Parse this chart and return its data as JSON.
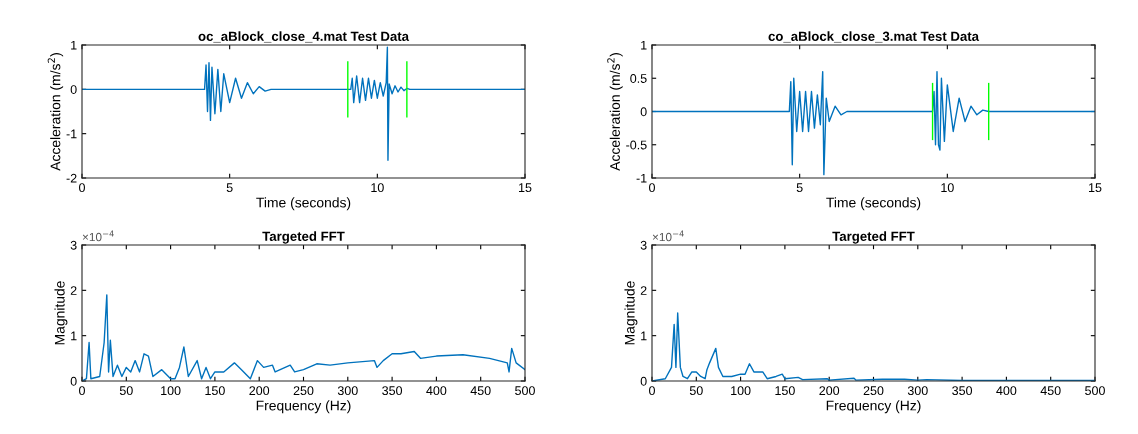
{
  "chart_data": [
    {
      "type": "line",
      "title": "oc_aBlock_close_4.mat Test Data",
      "xlabel": "Time (seconds)",
      "ylabel": "Acceleration (m/s$^{2}$)",
      "xlim": [
        0,
        15
      ],
      "xticks": [
        0,
        5,
        10,
        15
      ],
      "ylim": [
        -2,
        1
      ],
      "yticks": [
        -2,
        -1,
        0,
        1
      ],
      "series": [
        {
          "color": "#0072bd",
          "x": [
            0,
            4.15,
            4.2,
            4.25,
            4.3,
            4.35,
            4.4,
            4.5,
            4.6,
            4.7,
            4.8,
            5.0,
            5.2,
            5.4,
            5.6,
            5.8,
            6.0,
            6.2,
            6.4,
            9.1,
            9.15,
            9.2,
            9.3,
            9.4,
            9.5,
            9.6,
            9.7,
            9.8,
            9.9,
            10.0,
            10.1,
            10.2,
            10.3,
            10.34,
            10.36,
            10.4,
            10.5,
            10.6,
            10.7,
            10.8,
            10.9,
            11.0,
            11.1,
            15
          ],
          "values": [
            0,
            0,
            0.55,
            -0.5,
            0.6,
            -0.7,
            0.5,
            -0.55,
            0.45,
            -0.5,
            0.35,
            -0.3,
            0.25,
            -0.2,
            0.15,
            -0.1,
            0.06,
            -0.04,
            0,
            0,
            0.25,
            -0.3,
            0.3,
            -0.3,
            0.25,
            -0.25,
            0.25,
            -0.2,
            0.2,
            -0.2,
            0.15,
            -0.15,
            0.15,
            0.95,
            -1.6,
            0.12,
            -0.1,
            0.08,
            -0.06,
            0.05,
            -0.03,
            0.02,
            0,
            0
          ]
        },
        {
          "color": "#00ff00",
          "x": [
            9.0,
            9.0
          ],
          "values": [
            -0.62,
            0.62
          ]
        },
        {
          "color": "#00ff00",
          "x": [
            11.0,
            11.0
          ],
          "values": [
            -0.62,
            0.62
          ]
        }
      ]
    },
    {
      "type": "line",
      "title": "co_aBlock_close_3.mat Test Data",
      "xlabel": "Time (seconds)",
      "ylabel": "Acceleration (m/s$^{2}$)",
      "xlim": [
        0,
        15
      ],
      "xticks": [
        0,
        5,
        10,
        15
      ],
      "ylim": [
        -1,
        1
      ],
      "yticks": [
        -1,
        -0.5,
        0,
        0.5,
        1
      ],
      "series": [
        {
          "color": "#0072bd",
          "x": [
            0,
            4.65,
            4.7,
            4.75,
            4.8,
            4.9,
            5.0,
            5.1,
            5.2,
            5.3,
            5.4,
            5.5,
            5.6,
            5.7,
            5.78,
            5.82,
            5.9,
            6.0,
            6.2,
            6.4,
            6.6,
            9.5,
            9.55,
            9.6,
            9.65,
            9.7,
            9.75,
            9.8,
            9.9,
            10.0,
            10.2,
            10.4,
            10.6,
            10.8,
            11.0,
            11.2,
            11.4,
            15
          ],
          "values": [
            0,
            0,
            0.45,
            -0.8,
            0.5,
            -0.3,
            0.3,
            -0.3,
            0.3,
            -0.3,
            0.3,
            -0.25,
            0.25,
            -0.2,
            0.6,
            -0.95,
            0.2,
            -0.15,
            0.08,
            -0.05,
            0,
            0,
            0.3,
            -0.5,
            0.6,
            -0.5,
            -0.58,
            0.5,
            -0.45,
            0.4,
            -0.3,
            0.2,
            -0.15,
            0.08,
            -0.05,
            0.02,
            0,
            0
          ]
        },
        {
          "color": "#00ff00",
          "x": [
            9.5,
            9.5
          ],
          "values": [
            -0.42,
            0.42
          ]
        },
        {
          "color": "#00ff00",
          "x": [
            11.4,
            11.4
          ],
          "values": [
            -0.42,
            0.42
          ]
        }
      ]
    },
    {
      "type": "line",
      "title": "Targeted FFT",
      "xlabel": "Frequency (Hz)",
      "ylabel": "Magnitude",
      "annotations": [
        "×10$^{−4}$"
      ],
      "xlim": [
        0,
        500
      ],
      "xticks": [
        0,
        50,
        100,
        150,
        200,
        250,
        300,
        350,
        400,
        450,
        500
      ],
      "ylim": [
        0,
        3
      ],
      "yticks": [
        0,
        1,
        2,
        3
      ],
      "series": [
        {
          "color": "#0072bd",
          "x": [
            0,
            5,
            8,
            10,
            20,
            25,
            28,
            30,
            32,
            35,
            40,
            45,
            50,
            55,
            60,
            65,
            70,
            75,
            80,
            90,
            100,
            105,
            110,
            115,
            120,
            130,
            135,
            140,
            145,
            150,
            160,
            172,
            180,
            190,
            198,
            205,
            215,
            218,
            235,
            240,
            250,
            265,
            280,
            300,
            330,
            333,
            340,
            350,
            360,
            375,
            382,
            400,
            430,
            460,
            480,
            482,
            485,
            490,
            500
          ],
          "values": [
            0,
            0.05,
            0.85,
            0.05,
            0.1,
            0.85,
            1.9,
            0.2,
            0.9,
            0.1,
            0.35,
            0.1,
            0.3,
            0.2,
            0.45,
            0.2,
            0.6,
            0.55,
            0.1,
            0.25,
            0.05,
            0.05,
            0.3,
            0.75,
            0.1,
            0.45,
            0.05,
            0.3,
            0.05,
            0.2,
            0.2,
            0.4,
            0.25,
            0.05,
            0.45,
            0.3,
            0.35,
            0.2,
            0.35,
            0.2,
            0.25,
            0.38,
            0.35,
            0.4,
            0.45,
            0.3,
            0.45,
            0.6,
            0.6,
            0.65,
            0.5,
            0.55,
            0.58,
            0.5,
            0.4,
            0.2,
            0.72,
            0.4,
            0.25
          ]
        }
      ]
    },
    {
      "type": "line",
      "title": "Targeted FFT",
      "xlabel": "Frequency (Hz)",
      "ylabel": "Magnitude",
      "annotations": [
        "×10$^{−4}$"
      ],
      "xlim": [
        0,
        500
      ],
      "xticks": [
        0,
        50,
        100,
        150,
        200,
        250,
        300,
        350,
        400,
        450,
        500
      ],
      "ylim": [
        0,
        3
      ],
      "yticks": [
        0,
        1,
        2,
        3
      ],
      "series": [
        {
          "color": "#0072bd",
          "x": [
            0,
            15,
            22,
            25,
            27,
            29,
            32,
            35,
            40,
            45,
            50,
            55,
            60,
            62,
            65,
            72,
            75,
            80,
            90,
            100,
            105,
            110,
            115,
            125,
            130,
            140,
            147,
            150,
            165,
            170,
            198,
            200,
            228,
            230,
            260,
            285,
            300,
            310,
            350,
            500
          ],
          "values": [
            0,
            0.05,
            0.3,
            1.25,
            0.3,
            1.5,
            0.3,
            0.1,
            0.05,
            0.2,
            0.2,
            0.1,
            0.05,
            0.25,
            0.4,
            0.72,
            0.3,
            0.1,
            0.1,
            0.15,
            0.15,
            0.38,
            0.2,
            0.2,
            0.05,
            0.1,
            0.15,
            0.05,
            0.08,
            0.03,
            0.05,
            0.02,
            0.06,
            0.02,
            0.04,
            0.04,
            0.02,
            0.03,
            0.01,
            0.01
          ]
        }
      ]
    }
  ]
}
